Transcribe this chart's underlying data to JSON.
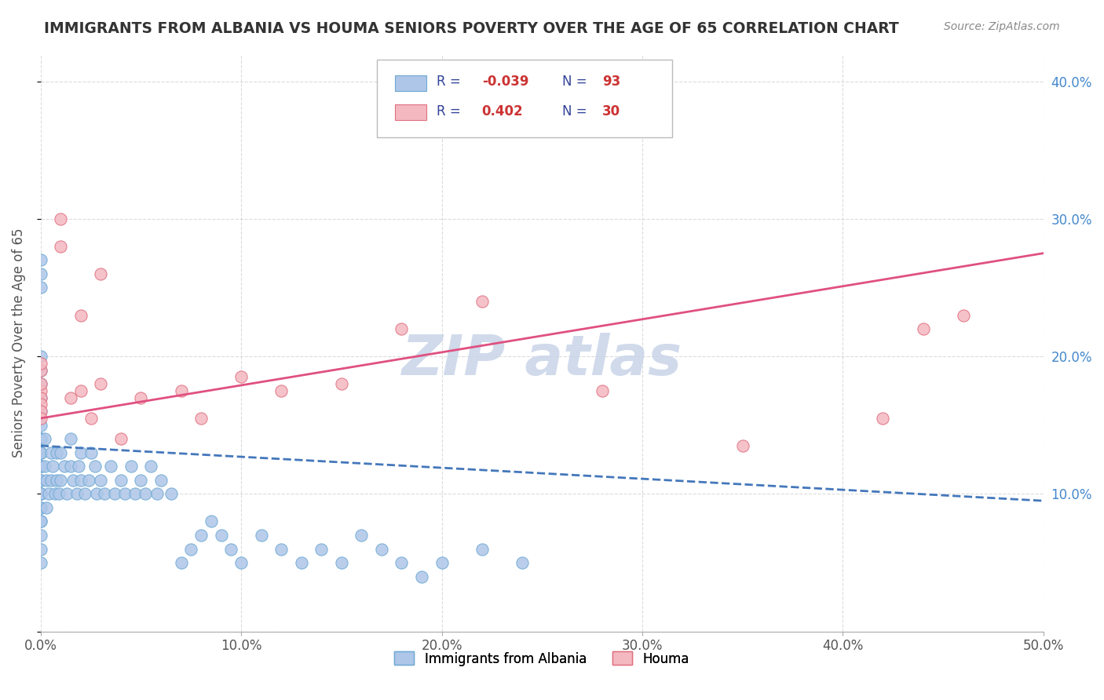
{
  "title": "IMMIGRANTS FROM ALBANIA VS HOUMA SENIORS POVERTY OVER THE AGE OF 65 CORRELATION CHART",
  "source": "Source: ZipAtlas.com",
  "ylabel": "Seniors Poverty Over the Age of 65",
  "xlabel_label": "Immigrants from Albania",
  "houma_label": "Houma",
  "legend_r1_val": "-0.039",
  "legend_n1_val": "93",
  "legend_r2_val": "0.402",
  "legend_n2_val": "30",
  "xlim": [
    0.0,
    0.5
  ],
  "ylim": [
    0.0,
    0.42
  ],
  "xticks": [
    0.0,
    0.1,
    0.2,
    0.3,
    0.4,
    0.5
  ],
  "yticks": [
    0.0,
    0.1,
    0.2,
    0.3,
    0.4
  ],
  "background_color": "#ffffff",
  "grid_color": "#cccccc",
  "scatter_blue_color": "#aec6e8",
  "scatter_blue_edge": "#6faad4",
  "scatter_pink_color": "#f4b8c1",
  "scatter_pink_edge": "#e07080",
  "line_blue_color": "#4477bb",
  "line_pink_color": "#e05080",
  "title_color": "#333333",
  "axis_color": "#555555",
  "watermark_color": "#c8d4e8",
  "blue_scatter_x": [
    0.0,
    0.0,
    0.0,
    0.0,
    0.0,
    0.0,
    0.0,
    0.0,
    0.0,
    0.0,
    0.0,
    0.0,
    0.0,
    0.0,
    0.0,
    0.0,
    0.0,
    0.0,
    0.0,
    0.0,
    0.0,
    0.0,
    0.0,
    0.0,
    0.0,
    0.0,
    0.0,
    0.0,
    0.0,
    0.0,
    0.002,
    0.002,
    0.003,
    0.003,
    0.004,
    0.005,
    0.005,
    0.006,
    0.007,
    0.008,
    0.008,
    0.009,
    0.01,
    0.01,
    0.012,
    0.013,
    0.015,
    0.015,
    0.016,
    0.018,
    0.019,
    0.02,
    0.02,
    0.022,
    0.024,
    0.025,
    0.027,
    0.028,
    0.03,
    0.032,
    0.035,
    0.037,
    0.04,
    0.042,
    0.045,
    0.047,
    0.05,
    0.052,
    0.055,
    0.058,
    0.06,
    0.065,
    0.07,
    0.075,
    0.08,
    0.085,
    0.09,
    0.095,
    0.1,
    0.11,
    0.12,
    0.13,
    0.14,
    0.15,
    0.16,
    0.17,
    0.18,
    0.19,
    0.2,
    0.22,
    0.24
  ],
  "blue_scatter_y": [
    0.05,
    0.06,
    0.07,
    0.08,
    0.09,
    0.1,
    0.11,
    0.12,
    0.13,
    0.14,
    0.15,
    0.16,
    0.17,
    0.18,
    0.19,
    0.2,
    0.12,
    0.13,
    0.14,
    0.25,
    0.26,
    0.27,
    0.08,
    0.1,
    0.12,
    0.14,
    0.09,
    0.11,
    0.13,
    0.1,
    0.12,
    0.14,
    0.09,
    0.11,
    0.1,
    0.11,
    0.13,
    0.12,
    0.1,
    0.11,
    0.13,
    0.1,
    0.11,
    0.13,
    0.12,
    0.1,
    0.12,
    0.14,
    0.11,
    0.1,
    0.12,
    0.11,
    0.13,
    0.1,
    0.11,
    0.13,
    0.12,
    0.1,
    0.11,
    0.1,
    0.12,
    0.1,
    0.11,
    0.1,
    0.12,
    0.1,
    0.11,
    0.1,
    0.12,
    0.1,
    0.11,
    0.1,
    0.05,
    0.06,
    0.07,
    0.08,
    0.07,
    0.06,
    0.05,
    0.07,
    0.06,
    0.05,
    0.06,
    0.05,
    0.07,
    0.06,
    0.05,
    0.04,
    0.05,
    0.06,
    0.05
  ],
  "pink_scatter_x": [
    0.0,
    0.0,
    0.0,
    0.0,
    0.0,
    0.0,
    0.0,
    0.0,
    0.01,
    0.01,
    0.015,
    0.02,
    0.025,
    0.03,
    0.04,
    0.05,
    0.07,
    0.08,
    0.1,
    0.12,
    0.15,
    0.18,
    0.22,
    0.28,
    0.35,
    0.42,
    0.44,
    0.46,
    0.02,
    0.03
  ],
  "pink_scatter_y": [
    0.175,
    0.18,
    0.19,
    0.17,
    0.165,
    0.16,
    0.155,
    0.195,
    0.28,
    0.3,
    0.17,
    0.175,
    0.155,
    0.18,
    0.14,
    0.17,
    0.175,
    0.155,
    0.185,
    0.175,
    0.18,
    0.22,
    0.24,
    0.175,
    0.135,
    0.155,
    0.22,
    0.23,
    0.23,
    0.26
  ],
  "blue_line_x": [
    0.0,
    0.5
  ],
  "blue_line_y": [
    0.135,
    0.095
  ],
  "pink_line_x": [
    0.0,
    0.5
  ],
  "pink_line_y": [
    0.155,
    0.275
  ]
}
